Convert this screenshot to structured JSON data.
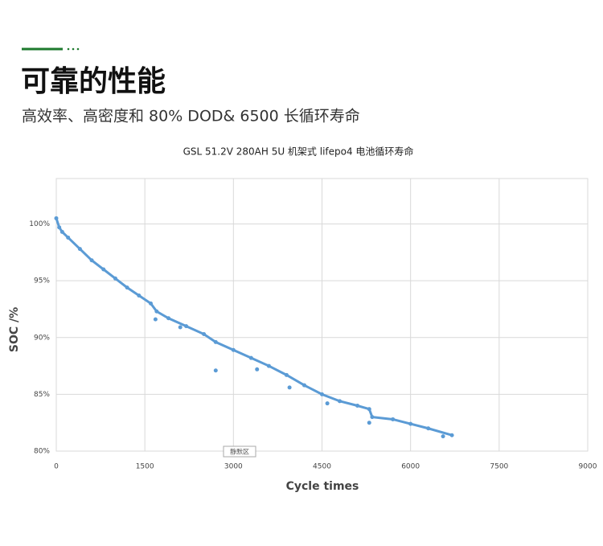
{
  "header": {
    "title": "可靠的性能",
    "subtitle": "高效率、高密度和 80% DOD& 6500 长循环寿命"
  },
  "chart_data": {
    "type": "line",
    "title": "GSL 51.2V 280AH 5U 机架式 lifepo4 电池循环寿命",
    "x_label": "Cycle times",
    "y_label": "SOC /%",
    "annotation": "静默区",
    "color": "#5b9bd5",
    "grid": true,
    "x": [
      0,
      50,
      100,
      200,
      400,
      600,
      800,
      1000,
      1200,
      1400,
      1600,
      1700,
      1900,
      2200,
      2500,
      2700,
      3000,
      3300,
      3600,
      3900,
      4200,
      4500,
      4800,
      5100,
      5300,
      5350,
      5700,
      6000,
      6300,
      6700
    ],
    "values": [
      100.5,
      99.7,
      99.3,
      98.8,
      97.8,
      96.8,
      96.0,
      95.2,
      94.4,
      93.7,
      93.0,
      92.3,
      91.7,
      91.0,
      90.3,
      89.6,
      88.9,
      88.2,
      87.5,
      86.7,
      85.8,
      85.0,
      84.4,
      84.0,
      83.7,
      83.0,
      82.8,
      82.4,
      82.0,
      81.4
    ],
    "outliers": {
      "x": [
        1680,
        2100,
        2700,
        3400,
        3950,
        4590,
        5300,
        6550
      ],
      "values": [
        91.6,
        90.9,
        87.1,
        87.2,
        85.6,
        84.2,
        82.5,
        81.3
      ]
    },
    "xlim": [
      0,
      9000
    ],
    "xticks": [
      0,
      1500,
      3000,
      4500,
      6000,
      7500,
      9000
    ],
    "ylim": [
      80,
      104
    ],
    "yticks": [
      {
        "value": 80,
        "label": "80%"
      },
      {
        "value": 85,
        "label": "85%"
      },
      {
        "value": 90,
        "label": "90%"
      },
      {
        "value": 95,
        "label": "95%"
      },
      {
        "value": 100,
        "label": "100%"
      }
    ]
  }
}
